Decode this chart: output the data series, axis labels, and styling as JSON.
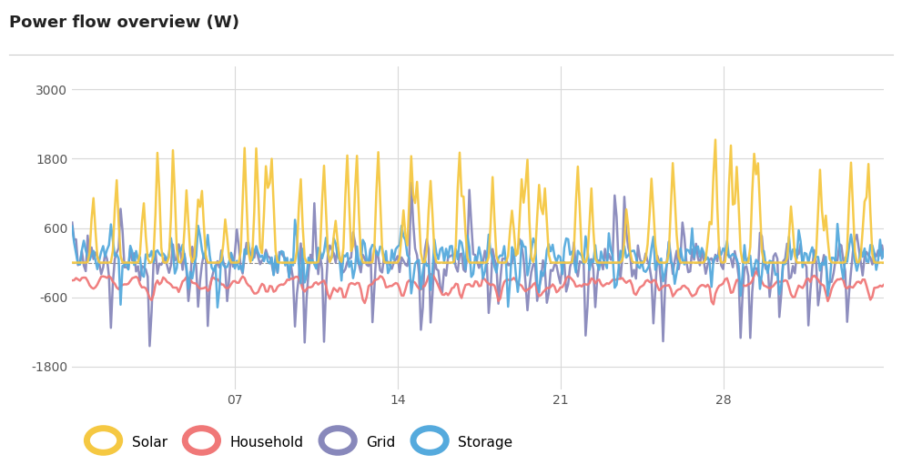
{
  "title": "Power flow overview (W)",
  "title_fontsize": 13,
  "background_color": "#ffffff",
  "plot_bg_color": "#ffffff",
  "colors": {
    "solar": "#f5c842",
    "household": "#f07878",
    "grid": "#8888bb",
    "storage": "#55aadd"
  },
  "line_widths": {
    "solar": 1.8,
    "household": 1.8,
    "grid": 1.8,
    "storage": 1.8
  },
  "ylim": [
    -2200,
    3400
  ],
  "yticks": [
    -1800,
    -600,
    600,
    1800,
    3000
  ],
  "xtick_labels": [
    "07",
    "14",
    "21",
    "28"
  ],
  "xtick_positions": [
    84,
    168,
    252,
    336
  ],
  "legend_labels": [
    "Solar",
    "Household",
    "Grid",
    "Storage"
  ],
  "n_points": 420,
  "zero_line": true
}
